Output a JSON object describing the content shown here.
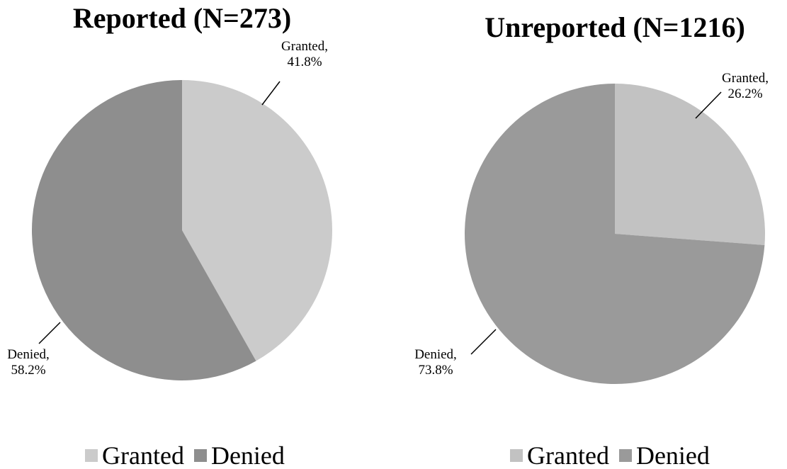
{
  "chart_data": [
    {
      "type": "pie",
      "title": "Reported (N=273)",
      "categories": [
        "Granted",
        "Denied"
      ],
      "values": [
        41.8,
        58.2
      ],
      "value_labels": [
        "Granted, 41.8%",
        "Denied, 58.2%"
      ],
      "colors": [
        "#cbcbcb",
        "#8e8e8e"
      ],
      "legend": "bottom"
    },
    {
      "type": "pie",
      "title": "Unreported (N=1216)",
      "categories": [
        "Granted",
        "Denied"
      ],
      "values": [
        26.2,
        73.8
      ],
      "value_labels": [
        "Granted, 26.2%",
        "Denied, 73.8%"
      ],
      "colors": [
        "#c2c2c2",
        "#9a9a9a"
      ],
      "legend": "bottom"
    }
  ]
}
